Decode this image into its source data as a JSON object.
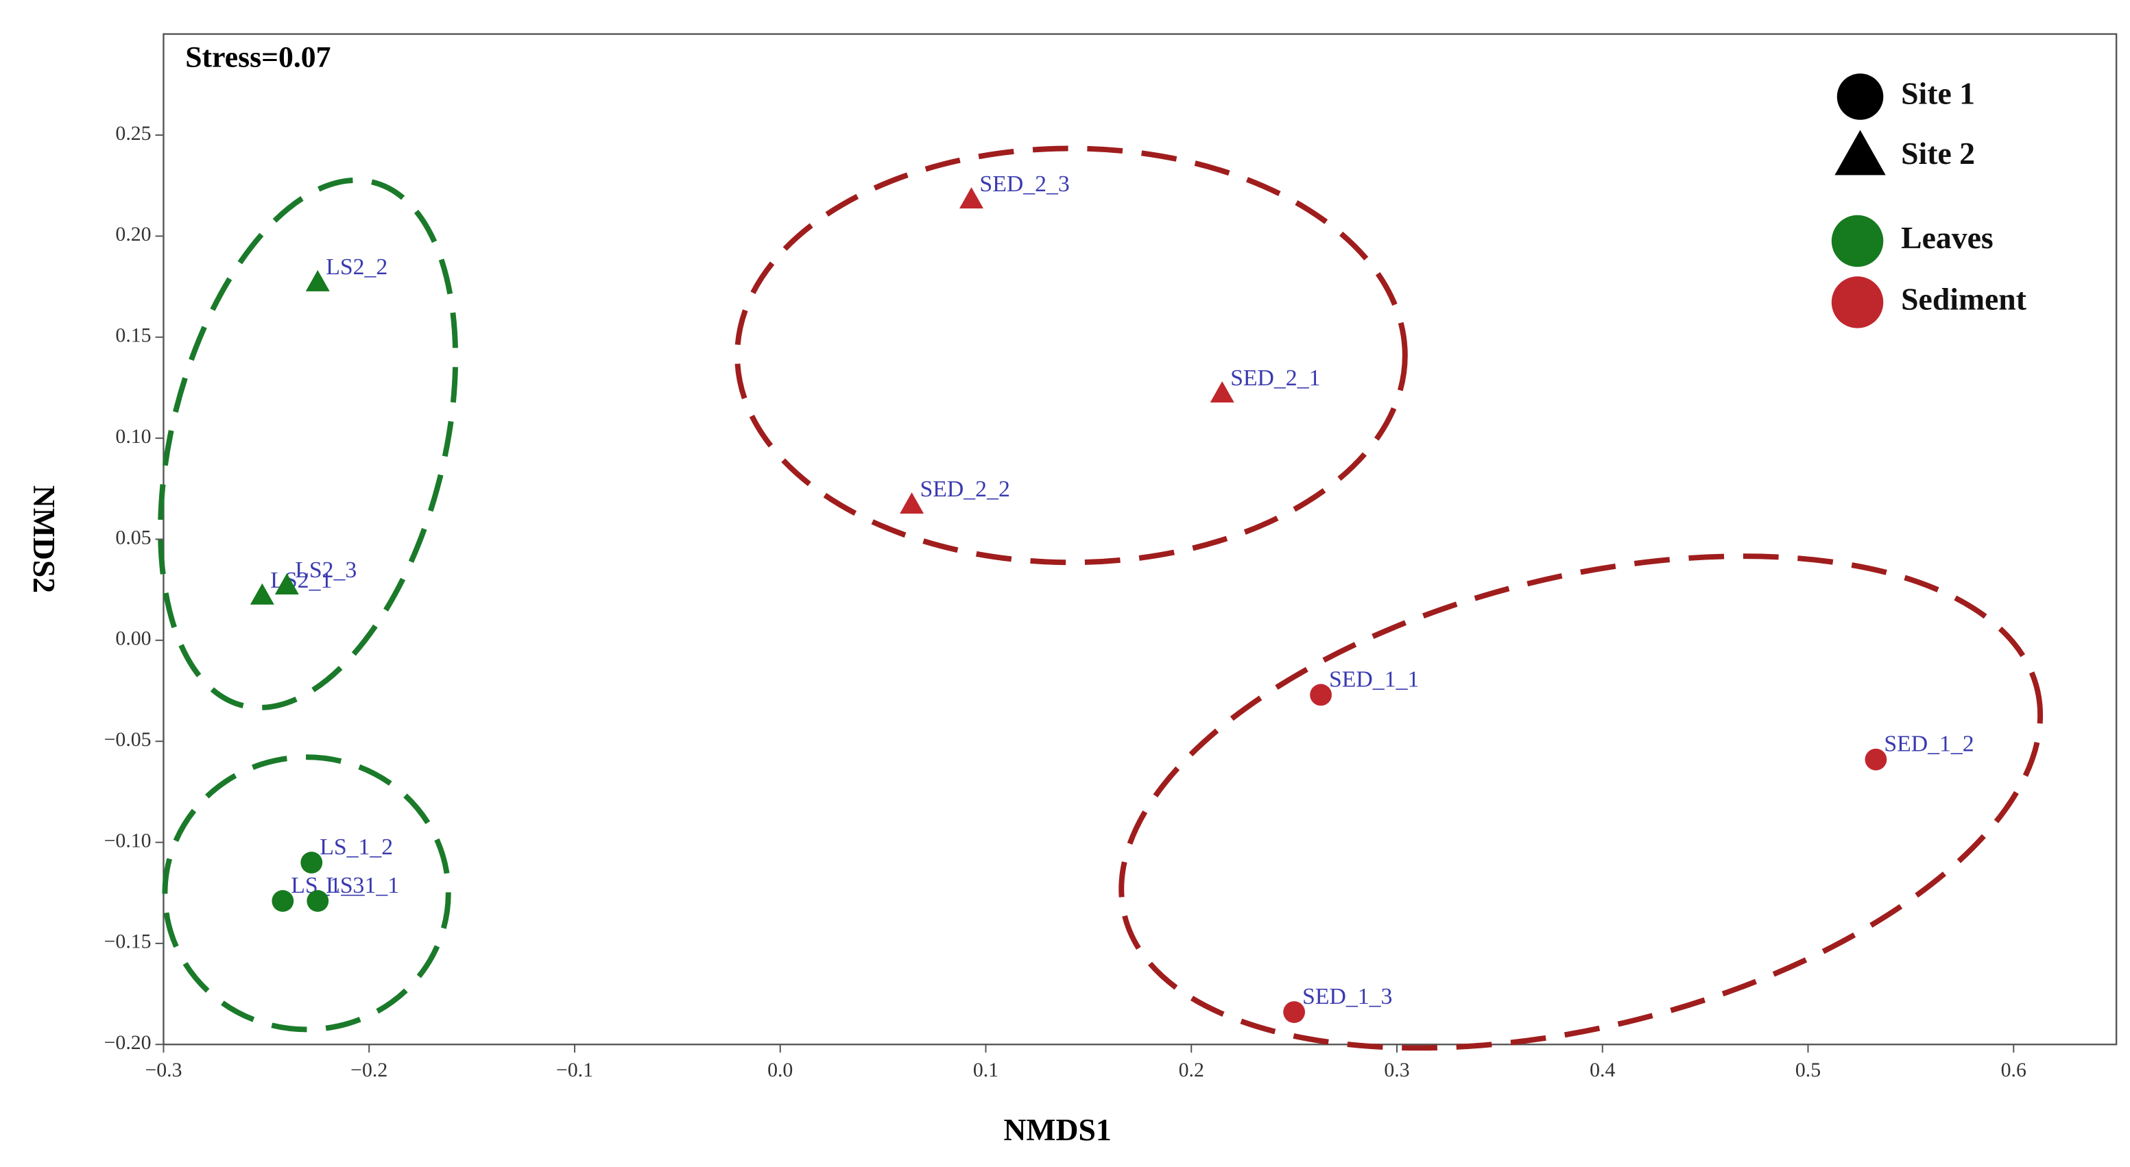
{
  "chart_data": {
    "type": "scatter",
    "annotation": "Stress=0.07",
    "xlabel": "NMDS1",
    "ylabel": "NMDS2",
    "xlim": [
      -0.3,
      0.65
    ],
    "ylim": [
      -0.2,
      0.3
    ],
    "xticks": [
      {
        "value": -0.3,
        "label": "−0.3"
      },
      {
        "value": -0.2,
        "label": "−0.2"
      },
      {
        "value": -0.1,
        "label": "−0.1"
      },
      {
        "value": 0,
        "label": "0.0"
      },
      {
        "value": 0.1,
        "label": "0.1"
      },
      {
        "value": 0.2,
        "label": "0.2"
      },
      {
        "value": 0.3,
        "label": "0.3"
      },
      {
        "value": 0.4,
        "label": "0.4"
      },
      {
        "value": 0.5,
        "label": "0.5"
      },
      {
        "value": 0.6,
        "label": "0.6"
      }
    ],
    "yticks": [
      {
        "value": -0.2,
        "label": "−0.20"
      },
      {
        "value": -0.15,
        "label": "−0.15"
      },
      {
        "value": -0.1,
        "label": "−0.10"
      },
      {
        "value": -0.05,
        "label": "−0.05"
      },
      {
        "value": 0,
        "label": "0.00"
      },
      {
        "value": 0.05,
        "label": "0.05"
      },
      {
        "value": 0.1,
        "label": "0.10"
      },
      {
        "value": 0.15,
        "label": "0.15"
      },
      {
        "value": 0.2,
        "label": "0.20"
      },
      {
        "value": 0.25,
        "label": "0.25"
      }
    ],
    "legend": {
      "shapes": [
        {
          "label": "Site 1",
          "shape": "circle"
        },
        {
          "label": "Site 2",
          "shape": "triangle"
        }
      ],
      "colors": [
        {
          "label": "Leaves",
          "color": "#167a1e"
        },
        {
          "label": "Sediment",
          "color": "#c0272d"
        }
      ]
    },
    "series": [
      {
        "shape": "triangle",
        "color": "#167a1e",
        "labels": [
          "LS2_2",
          "LS2_1",
          "LS2_3"
        ],
        "x": [
          -0.225,
          -0.252,
          -0.24
        ],
        "values": [
          0.177,
          0.022,
          0.027
        ]
      },
      {
        "shape": "circle",
        "color": "#167a1e",
        "labels": [
          "LS_1_2",
          "LS_1_3",
          "LS_1_1"
        ],
        "x": [
          -0.228,
          -0.242,
          -0.225
        ],
        "values": [
          -0.11,
          -0.129,
          -0.129
        ]
      },
      {
        "shape": "triangle",
        "color": "#c0272d",
        "labels": [
          "SED_2_3",
          "SED_2_1",
          "SED_2_2"
        ],
        "x": [
          0.093,
          0.215,
          0.064
        ],
        "values": [
          0.218,
          0.122,
          0.067
        ]
      },
      {
        "shape": "circle",
        "color": "#c0272d",
        "labels": [
          "SED_1_1",
          "SED_1_2",
          "SED_1_3"
        ],
        "x": [
          0.263,
          0.533,
          0.25
        ],
        "values": [
          -0.027,
          -0.059,
          -0.184
        ]
      }
    ]
  }
}
